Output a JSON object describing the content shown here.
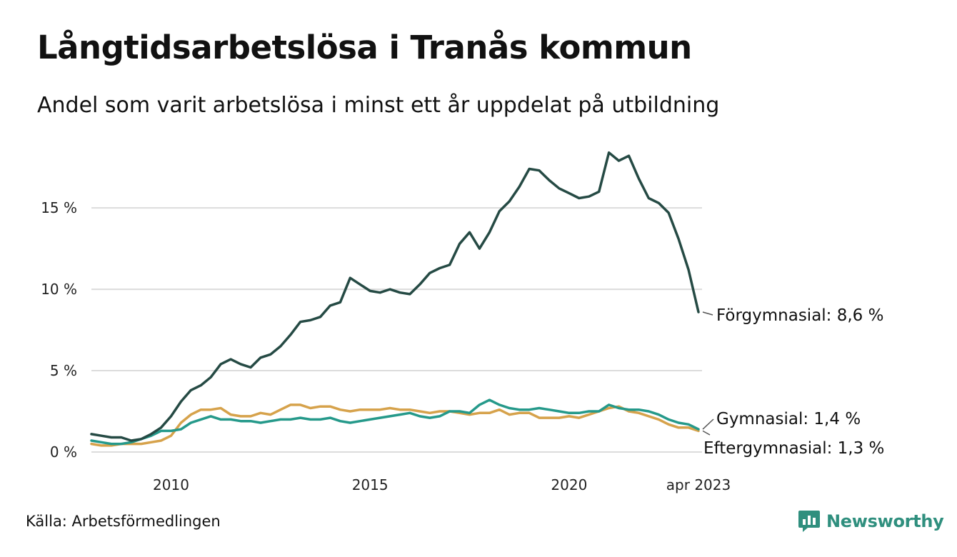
{
  "title": "Långtidsarbetslösa i Tranås kommun",
  "subtitle": "Andel som varit arbetslösa i minst ett år uppdelat på utbildning",
  "source": "Källa: Arbetsförmedlingen",
  "brand": "Newsworthy",
  "chart_data": {
    "type": "line",
    "title": "Långtidsarbetslösa i Tranås kommun",
    "subtitle": "Andel som varit arbetslösa i minst ett år uppdelat på utbildning",
    "x_range": [
      "2008-01",
      "2023-04"
    ],
    "ylim": [
      0,
      19
    ],
    "y_ticks": [
      0,
      5,
      10,
      15
    ],
    "y_tick_labels": [
      "0 %",
      "5 %",
      "10 %",
      "15 %"
    ],
    "x_tick_dates": [
      "2010-01",
      "2015-01",
      "2020-01",
      "2023-04"
    ],
    "x_tick_labels": [
      "2010",
      "2015",
      "2020",
      "apr 2023"
    ],
    "grid": true,
    "series": [
      {
        "name": "Förgymnasial",
        "end_label": "Förgymnasial: 8,6 %",
        "color": "#254a44",
        "points": [
          [
            "2008-01",
            1.1
          ],
          [
            "2008-04",
            1.0
          ],
          [
            "2008-07",
            0.9
          ],
          [
            "2008-10",
            0.9
          ],
          [
            "2009-01",
            0.7
          ],
          [
            "2009-04",
            0.8
          ],
          [
            "2009-07",
            1.1
          ],
          [
            "2009-10",
            1.5
          ],
          [
            "2010-01",
            2.2
          ],
          [
            "2010-04",
            3.1
          ],
          [
            "2010-07",
            3.8
          ],
          [
            "2010-10",
            4.1
          ],
          [
            "2011-01",
            4.6
          ],
          [
            "2011-04",
            5.4
          ],
          [
            "2011-07",
            5.7
          ],
          [
            "2011-10",
            5.4
          ],
          [
            "2012-01",
            5.2
          ],
          [
            "2012-04",
            5.8
          ],
          [
            "2012-07",
            6.0
          ],
          [
            "2012-10",
            6.5
          ],
          [
            "2013-01",
            7.2
          ],
          [
            "2013-04",
            8.0
          ],
          [
            "2013-07",
            8.1
          ],
          [
            "2013-10",
            8.3
          ],
          [
            "2014-01",
            9.0
          ],
          [
            "2014-04",
            9.2
          ],
          [
            "2014-07",
            10.7
          ],
          [
            "2014-10",
            10.3
          ],
          [
            "2015-01",
            9.9
          ],
          [
            "2015-04",
            9.8
          ],
          [
            "2015-07",
            10.0
          ],
          [
            "2015-10",
            9.8
          ],
          [
            "2016-01",
            9.7
          ],
          [
            "2016-04",
            10.3
          ],
          [
            "2016-07",
            11.0
          ],
          [
            "2016-10",
            11.3
          ],
          [
            "2017-01",
            11.5
          ],
          [
            "2017-04",
            12.8
          ],
          [
            "2017-07",
            13.5
          ],
          [
            "2017-10",
            12.5
          ],
          [
            "2018-01",
            13.5
          ],
          [
            "2018-04",
            14.8
          ],
          [
            "2018-07",
            15.4
          ],
          [
            "2018-10",
            16.3
          ],
          [
            "2019-01",
            17.4
          ],
          [
            "2019-04",
            17.3
          ],
          [
            "2019-07",
            16.7
          ],
          [
            "2019-10",
            16.2
          ],
          [
            "2020-01",
            15.9
          ],
          [
            "2020-04",
            15.6
          ],
          [
            "2020-07",
            15.7
          ],
          [
            "2020-10",
            16.0
          ],
          [
            "2021-01",
            18.4
          ],
          [
            "2021-04",
            17.9
          ],
          [
            "2021-07",
            18.2
          ],
          [
            "2021-10",
            16.8
          ],
          [
            "2022-01",
            15.6
          ],
          [
            "2022-04",
            15.3
          ],
          [
            "2022-07",
            14.7
          ],
          [
            "2022-10",
            13.1
          ],
          [
            "2023-01",
            11.2
          ],
          [
            "2023-04",
            8.6
          ]
        ]
      },
      {
        "name": "Gymnasial",
        "end_label": "Gymnasial: 1,4 %",
        "color": "#25998a",
        "points": [
          [
            "2008-01",
            0.7
          ],
          [
            "2008-04",
            0.6
          ],
          [
            "2008-07",
            0.5
          ],
          [
            "2008-10",
            0.5
          ],
          [
            "2009-01",
            0.6
          ],
          [
            "2009-04",
            0.8
          ],
          [
            "2009-07",
            1.0
          ],
          [
            "2009-10",
            1.3
          ],
          [
            "2010-01",
            1.3
          ],
          [
            "2010-04",
            1.4
          ],
          [
            "2010-07",
            1.8
          ],
          [
            "2010-10",
            2.0
          ],
          [
            "2011-01",
            2.2
          ],
          [
            "2011-04",
            2.0
          ],
          [
            "2011-07",
            2.0
          ],
          [
            "2011-10",
            1.9
          ],
          [
            "2012-01",
            1.9
          ],
          [
            "2012-04",
            1.8
          ],
          [
            "2012-07",
            1.9
          ],
          [
            "2012-10",
            2.0
          ],
          [
            "2013-01",
            2.0
          ],
          [
            "2013-04",
            2.1
          ],
          [
            "2013-07",
            2.0
          ],
          [
            "2013-10",
            2.0
          ],
          [
            "2014-01",
            2.1
          ],
          [
            "2014-04",
            1.9
          ],
          [
            "2014-07",
            1.8
          ],
          [
            "2014-10",
            1.9
          ],
          [
            "2015-01",
            2.0
          ],
          [
            "2015-04",
            2.1
          ],
          [
            "2015-07",
            2.2
          ],
          [
            "2015-10",
            2.3
          ],
          [
            "2016-01",
            2.4
          ],
          [
            "2016-04",
            2.2
          ],
          [
            "2016-07",
            2.1
          ],
          [
            "2016-10",
            2.2
          ],
          [
            "2017-01",
            2.5
          ],
          [
            "2017-04",
            2.5
          ],
          [
            "2017-07",
            2.4
          ],
          [
            "2017-10",
            2.9
          ],
          [
            "2018-01",
            3.2
          ],
          [
            "2018-04",
            2.9
          ],
          [
            "2018-07",
            2.7
          ],
          [
            "2018-10",
            2.6
          ],
          [
            "2019-01",
            2.6
          ],
          [
            "2019-04",
            2.7
          ],
          [
            "2019-07",
            2.6
          ],
          [
            "2019-10",
            2.5
          ],
          [
            "2020-01",
            2.4
          ],
          [
            "2020-04",
            2.4
          ],
          [
            "2020-07",
            2.5
          ],
          [
            "2020-10",
            2.5
          ],
          [
            "2021-01",
            2.9
          ],
          [
            "2021-04",
            2.7
          ],
          [
            "2021-07",
            2.6
          ],
          [
            "2021-10",
            2.6
          ],
          [
            "2022-01",
            2.5
          ],
          [
            "2022-04",
            2.3
          ],
          [
            "2022-07",
            2.0
          ],
          [
            "2022-10",
            1.8
          ],
          [
            "2023-01",
            1.7
          ],
          [
            "2023-04",
            1.4
          ]
        ]
      },
      {
        "name": "Eftergymnasial",
        "end_label": "Eftergymnasial: 1,3 %",
        "color": "#d6a24b",
        "points": [
          [
            "2008-01",
            0.5
          ],
          [
            "2008-04",
            0.4
          ],
          [
            "2008-07",
            0.4
          ],
          [
            "2008-10",
            0.5
          ],
          [
            "2009-01",
            0.5
          ],
          [
            "2009-04",
            0.5
          ],
          [
            "2009-07",
            0.6
          ],
          [
            "2009-10",
            0.7
          ],
          [
            "2010-01",
            1.0
          ],
          [
            "2010-04",
            1.8
          ],
          [
            "2010-07",
            2.3
          ],
          [
            "2010-10",
            2.6
          ],
          [
            "2011-01",
            2.6
          ],
          [
            "2011-04",
            2.7
          ],
          [
            "2011-07",
            2.3
          ],
          [
            "2011-10",
            2.2
          ],
          [
            "2012-01",
            2.2
          ],
          [
            "2012-04",
            2.4
          ],
          [
            "2012-07",
            2.3
          ],
          [
            "2012-10",
            2.6
          ],
          [
            "2013-01",
            2.9
          ],
          [
            "2013-04",
            2.9
          ],
          [
            "2013-07",
            2.7
          ],
          [
            "2013-10",
            2.8
          ],
          [
            "2014-01",
            2.8
          ],
          [
            "2014-04",
            2.6
          ],
          [
            "2014-07",
            2.5
          ],
          [
            "2014-10",
            2.6
          ],
          [
            "2015-01",
            2.6
          ],
          [
            "2015-04",
            2.6
          ],
          [
            "2015-07",
            2.7
          ],
          [
            "2015-10",
            2.6
          ],
          [
            "2016-01",
            2.6
          ],
          [
            "2016-04",
            2.5
          ],
          [
            "2016-07",
            2.4
          ],
          [
            "2016-10",
            2.5
          ],
          [
            "2017-01",
            2.5
          ],
          [
            "2017-04",
            2.4
          ],
          [
            "2017-07",
            2.3
          ],
          [
            "2017-10",
            2.4
          ],
          [
            "2018-01",
            2.4
          ],
          [
            "2018-04",
            2.6
          ],
          [
            "2018-07",
            2.3
          ],
          [
            "2018-10",
            2.4
          ],
          [
            "2019-01",
            2.4
          ],
          [
            "2019-04",
            2.1
          ],
          [
            "2019-07",
            2.1
          ],
          [
            "2019-10",
            2.1
          ],
          [
            "2020-01",
            2.2
          ],
          [
            "2020-04",
            2.1
          ],
          [
            "2020-07",
            2.3
          ],
          [
            "2020-10",
            2.5
          ],
          [
            "2021-01",
            2.7
          ],
          [
            "2021-04",
            2.8
          ],
          [
            "2021-07",
            2.5
          ],
          [
            "2021-10",
            2.4
          ],
          [
            "2022-01",
            2.2
          ],
          [
            "2022-04",
            2.0
          ],
          [
            "2022-07",
            1.7
          ],
          [
            "2022-10",
            1.5
          ],
          [
            "2023-01",
            1.5
          ],
          [
            "2023-04",
            1.3
          ]
        ]
      }
    ]
  }
}
